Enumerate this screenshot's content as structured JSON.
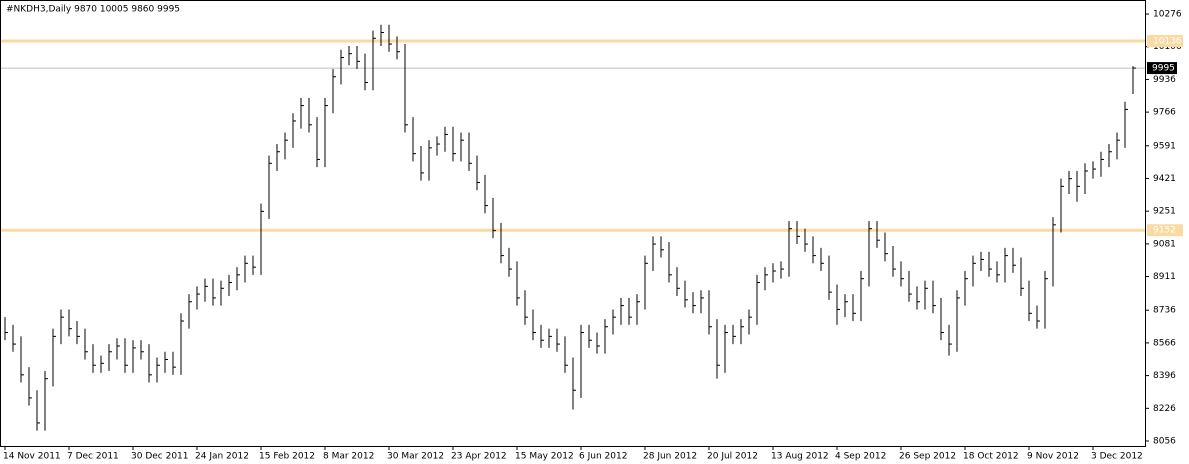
{
  "chart_data": {
    "type": "ohlc",
    "title": "#NKDH3,Daily  9870 10005 9860 9995",
    "color": "#000000",
    "categories": [
      "14 Nov 2011",
      null,
      null,
      null,
      null,
      null,
      null,
      null,
      "7 Dec 2011",
      null,
      null,
      null,
      null,
      null,
      null,
      null,
      "30 Dec 2011",
      null,
      null,
      null,
      null,
      null,
      null,
      null,
      "24 Jan 2012",
      null,
      null,
      null,
      null,
      null,
      null,
      null,
      "15 Feb 2012",
      null,
      null,
      null,
      null,
      null,
      null,
      null,
      "8 Mar 2012",
      null,
      null,
      null,
      null,
      null,
      null,
      null,
      "30 Mar 2012",
      null,
      null,
      null,
      null,
      null,
      null,
      null,
      "23 Apr 2012",
      null,
      null,
      null,
      null,
      null,
      null,
      null,
      "15 May 2012",
      null,
      null,
      null,
      null,
      null,
      null,
      null,
      "6 Jun 2012",
      null,
      null,
      null,
      null,
      null,
      null,
      null,
      "28 Jun 2012",
      null,
      null,
      null,
      null,
      null,
      null,
      null,
      "20 Jul 2012",
      null,
      null,
      null,
      null,
      null,
      null,
      null,
      "13 Aug 2012",
      null,
      null,
      null,
      null,
      null,
      null,
      null,
      "4 Sep 2012",
      null,
      null,
      null,
      null,
      null,
      null,
      null,
      "26 Sep 2012",
      null,
      null,
      null,
      null,
      null,
      null,
      null,
      "18 Oct 2012",
      null,
      null,
      null,
      null,
      null,
      null,
      null,
      "9 Nov 2012",
      null,
      null,
      null,
      null,
      null,
      null,
      null,
      "3 Dec 2012",
      null,
      null,
      null,
      null,
      null
    ],
    "high": [
      8700,
      8660,
      8600,
      8440,
      8320,
      8420,
      8640,
      8740,
      8740,
      8680,
      8640,
      8560,
      8500,
      8560,
      8590,
      8590,
      8580,
      8580,
      8560,
      8490,
      8520,
      8520,
      8720,
      8820,
      8860,
      8900,
      8900,
      8890,
      8920,
      8960,
      9020,
      9020,
      9290,
      9540,
      9600,
      9660,
      9760,
      9840,
      9840,
      9740,
      9840,
      9990,
      10090,
      10110,
      10110,
      10070,
      10190,
      10220,
      10220,
      10160,
      10120,
      9740,
      9590,
      9620,
      9640,
      9690,
      9690,
      9660,
      9660,
      9540,
      9440,
      9320,
      9190,
      9060,
      8990,
      8840,
      8740,
      8660,
      8640,
      8640,
      8600,
      8490,
      8660,
      8660,
      8620,
      8690,
      8740,
      8800,
      8800,
      8820,
      9020,
      9120,
      9120,
      9090,
      8960,
      8890,
      8830,
      8840,
      8840,
      8690,
      8660,
      8660,
      8690,
      8740,
      8920,
      8960,
      8980,
      8990,
      9200,
      9200,
      9160,
      9120,
      9060,
      9020,
      8870,
      8820,
      8820,
      8940,
      9200,
      9200,
      9140,
      9070,
      8990,
      8940,
      8860,
      8890,
      8890,
      8800,
      8660,
      8840,
      8940,
      9020,
      9040,
      9040,
      8990,
      9060,
      9060,
      9010,
      8890,
      8760,
      8940,
      9220,
      9420,
      9460,
      9460,
      9500,
      9510,
      9560,
      9600,
      9660,
      9820,
      10005
    ],
    "low": [
      8580,
      8520,
      8360,
      8240,
      8110,
      8110,
      8340,
      8560,
      8600,
      8560,
      8480,
      8410,
      8410,
      8420,
      8480,
      8410,
      8410,
      8480,
      8360,
      8360,
      8410,
      8400,
      8400,
      8640,
      8740,
      8780,
      8760,
      8760,
      8810,
      8840,
      8880,
      8920,
      8920,
      9210,
      9460,
      9520,
      9580,
      9680,
      9660,
      9480,
      9480,
      9760,
      9910,
      10010,
      9990,
      9880,
      9880,
      10110,
      10080,
      10040,
      9660,
      9510,
      9410,
      9410,
      9540,
      9560,
      9510,
      9510,
      9460,
      9360,
      9240,
      9110,
      8980,
      8910,
      8760,
      8660,
      8580,
      8540,
      8540,
      8520,
      8410,
      8220,
      8280,
      8540,
      8510,
      8510,
      8610,
      8660,
      8660,
      8660,
      8740,
      8940,
      9010,
      8880,
      8810,
      8750,
      8720,
      8720,
      8610,
      8380,
      8410,
      8560,
      8560,
      8610,
      8660,
      8840,
      8880,
      8900,
      8910,
      9080,
      9040,
      8980,
      8940,
      8790,
      8660,
      8700,
      8680,
      8680,
      8860,
      9060,
      8990,
      8910,
      8860,
      8780,
      8740,
      8740,
      8720,
      8580,
      8500,
      8520,
      8760,
      8860,
      8940,
      8910,
      8880,
      8880,
      8930,
      8810,
      8680,
      8640,
      8640,
      8860,
      9140,
      9340,
      9300,
      9340,
      9420,
      9430,
      9480,
      9520,
      9580,
      9860
    ],
    "close": [
      8620,
      8560,
      8400,
      8280,
      8150,
      8380,
      8600,
      8700,
      8640,
      8600,
      8520,
      8450,
      8460,
      8520,
      8550,
      8450,
      8540,
      8520,
      8400,
      8450,
      8480,
      8440,
      8680,
      8780,
      8820,
      8860,
      8800,
      8850,
      8880,
      8920,
      8980,
      8960,
      9250,
      9500,
      9560,
      9620,
      9720,
      9800,
      9700,
      9520,
      9800,
      9950,
      10050,
      10070,
      10030,
      9920,
      10150,
      10180,
      10120,
      10080,
      9700,
      9550,
      9450,
      9580,
      9600,
      9650,
      9550,
      9620,
      9500,
      9400,
      9280,
      9150,
      9020,
      8950,
      8800,
      8700,
      8620,
      8580,
      8600,
      8560,
      8450,
      8320,
      8620,
      8580,
      8550,
      8650,
      8700,
      8760,
      8700,
      8780,
      8980,
      9080,
      9050,
      8920,
      8850,
      8790,
      8760,
      8800,
      8650,
      8450,
      8620,
      8600,
      8650,
      8700,
      8880,
      8920,
      8940,
      8950,
      9160,
      9120,
      9080,
      9020,
      8980,
      8830,
      8740,
      8780,
      8720,
      8900,
      9160,
      9100,
      9030,
      8950,
      8900,
      8820,
      8780,
      8850,
      8760,
      8620,
      8560,
      8800,
      8900,
      8980,
      9000,
      8950,
      8920,
      9020,
      8970,
      8850,
      8720,
      8680,
      8900,
      9180,
      9380,
      9420,
      9380,
      9460,
      9470,
      9520,
      9560,
      9620,
      9780,
      9995
    ],
    "ylim": [
      8030,
      10349
    ],
    "yticks": [
      8056,
      8226,
      8396,
      8566,
      8736,
      8911,
      9081,
      9251,
      9421,
      9591,
      9766,
      9936,
      10106,
      10276
    ],
    "levels": [
      {
        "value": 10136,
        "color": "#fbd9a3"
      },
      {
        "value": 9152,
        "color": "#fbd9a3"
      }
    ],
    "current_line_color": "#c0c0c0"
  }
}
